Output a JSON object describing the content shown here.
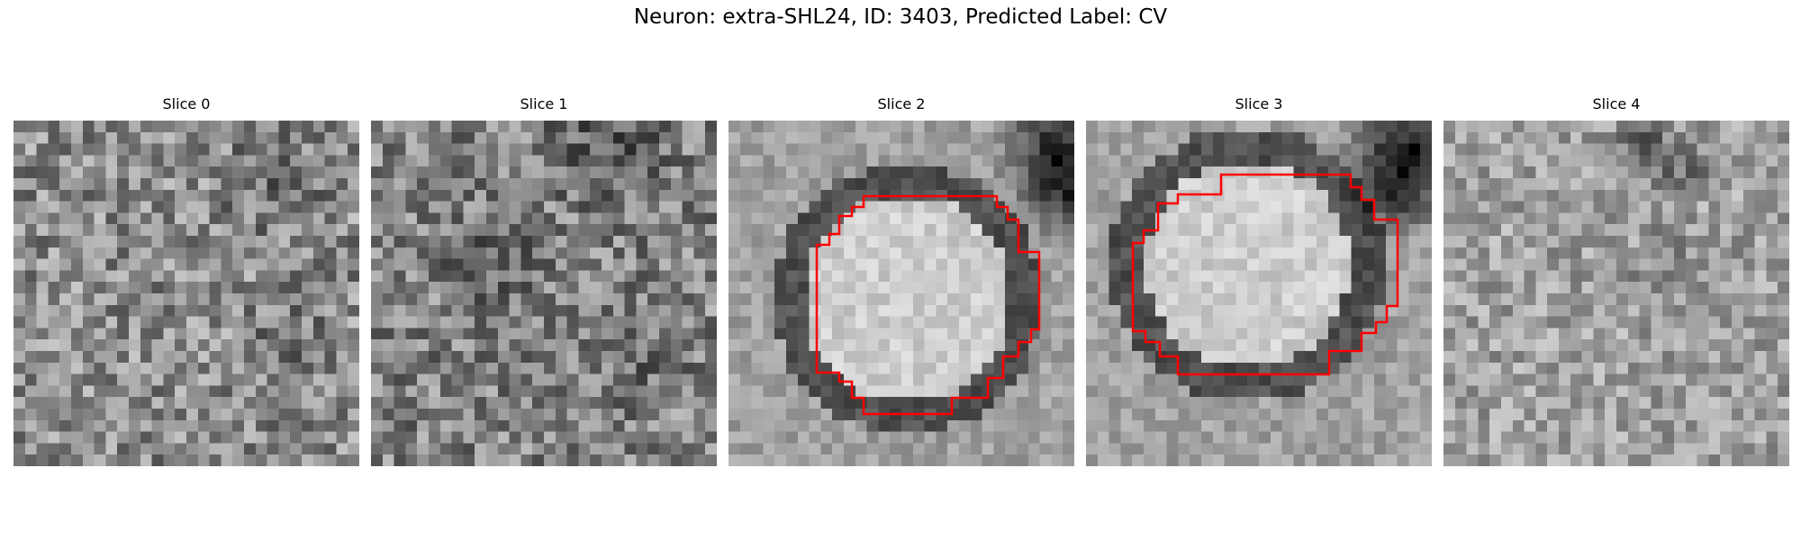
{
  "figure": {
    "title": "Neuron: extra-SHL24, ID: 3403, Predicted Label: CV"
  },
  "colors": {
    "contour": "#ff0000",
    "colormap": "grayscale"
  },
  "panels": [
    {
      "title": "Slice 0",
      "has_contour": false
    },
    {
      "title": "Slice 1",
      "has_contour": false
    },
    {
      "title": "Slice 2",
      "has_contour": true
    },
    {
      "title": "Slice 3",
      "has_contour": true
    },
    {
      "title": "Slice 4",
      "has_contour": false
    }
  ]
}
